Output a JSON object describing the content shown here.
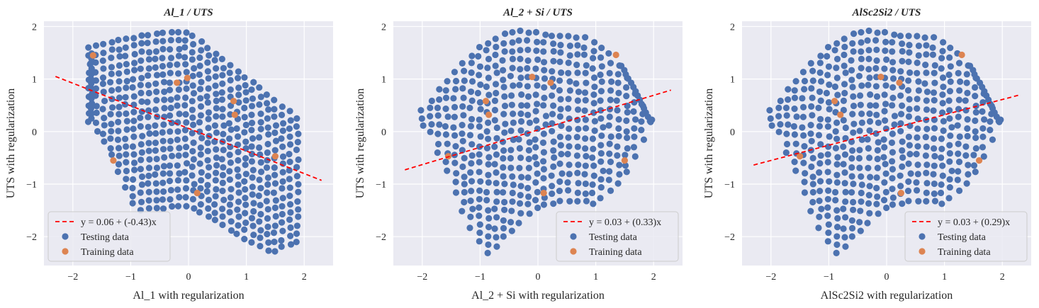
{
  "theme": {
    "background": "#ffffff",
    "axes_bg": "#eaeaf2",
    "grid": "#ffffff",
    "testing_color": "#4c72b0",
    "training_color": "#dd8452",
    "fit_color": "#ff0000",
    "text_color": "#262626"
  },
  "chart_data": [
    {
      "type": "scatter",
      "title": "Al_1 / UTS",
      "xlabel": "Al_1 with regularization",
      "ylabel": "UTS with regularization",
      "xlim": [
        -2.5,
        2.5
      ],
      "ylim": [
        -2.55,
        2.1
      ],
      "xticks": [
        -2,
        -1,
        0,
        1,
        2
      ],
      "yticks": [
        -2,
        -1,
        0,
        1,
        2
      ],
      "xticklabels": [
        "−2",
        "−1",
        "0",
        "1",
        "2"
      ],
      "yticklabels": [
        "−2",
        "−1",
        "0",
        "1",
        "2"
      ],
      "grid": true,
      "legend_position": "lower-left",
      "fit": {
        "label": "y = 0.06 + (-0.43)x",
        "intercept": 0.06,
        "slope": -0.43,
        "x_range": [
          -2.3,
          2.3
        ]
      },
      "testing_label": "Testing data",
      "training_label": "Training data",
      "pattern": "left-down",
      "training_points": [
        [
          -1.65,
          1.45
        ],
        [
          -0.2,
          0.93
        ],
        [
          -0.02,
          1.02
        ],
        [
          0.78,
          0.58
        ],
        [
          0.8,
          0.32
        ],
        [
          -1.3,
          -0.55
        ],
        [
          0.15,
          -1.17
        ],
        [
          1.5,
          -0.47
        ]
      ]
    },
    {
      "type": "scatter",
      "title": "Al_2 + Si / UTS",
      "xlabel": "Al_2 + Si with regularization",
      "ylabel": "UTS with regularization",
      "xlim": [
        -2.5,
        2.5
      ],
      "ylim": [
        -2.55,
        2.1
      ],
      "xticks": [
        -2,
        -1,
        0,
        1,
        2
      ],
      "yticks": [
        -2,
        -1,
        0,
        1,
        2
      ],
      "xticklabels": [
        "−2",
        "−1",
        "0",
        "1",
        "2"
      ],
      "yticklabels": [
        "−2",
        "−1",
        "0",
        "1",
        "2"
      ],
      "grid": true,
      "legend_position": "lower-right",
      "fit": {
        "label": "y = 0.03 + (0.33)x",
        "intercept": 0.03,
        "slope": 0.33,
        "x_range": [
          -2.3,
          2.3
        ]
      },
      "testing_label": "Testing data",
      "training_label": "Training data",
      "pattern": "arch",
      "training_points": [
        [
          -1.55,
          -0.47
        ],
        [
          -0.9,
          0.58
        ],
        [
          -0.85,
          0.32
        ],
        [
          -0.1,
          1.04
        ],
        [
          0.22,
          0.93
        ],
        [
          1.35,
          1.46
        ],
        [
          1.5,
          -0.55
        ],
        [
          0.1,
          -1.17
        ]
      ]
    },
    {
      "type": "scatter",
      "title": "AlSc2Si2 / UTS",
      "xlabel": "AlSc2Si2 with regularization",
      "ylabel": "UTS with regularization",
      "xlim": [
        -2.5,
        2.5
      ],
      "ylim": [
        -2.55,
        2.1
      ],
      "xticks": [
        -2,
        -1,
        0,
        1,
        2
      ],
      "yticks": [
        -2,
        -1,
        0,
        1,
        2
      ],
      "xticklabels": [
        "−2",
        "−1",
        "0",
        "1",
        "2"
      ],
      "yticklabels": [
        "−2",
        "−1",
        "0",
        "1",
        "2"
      ],
      "grid": true,
      "legend_position": "lower-right",
      "fit": {
        "label": "y = 0.03 + (0.29)x",
        "intercept": 0.03,
        "slope": 0.29,
        "x_range": [
          -2.3,
          2.3
        ]
      },
      "testing_label": "Testing data",
      "training_label": "Training data",
      "pattern": "arch",
      "training_points": [
        [
          -1.5,
          -0.47
        ],
        [
          -0.9,
          0.58
        ],
        [
          -0.8,
          0.32
        ],
        [
          -0.1,
          1.04
        ],
        [
          0.22,
          0.93
        ],
        [
          1.3,
          1.46
        ],
        [
          1.6,
          -0.55
        ],
        [
          0.25,
          -1.17
        ]
      ]
    }
  ]
}
